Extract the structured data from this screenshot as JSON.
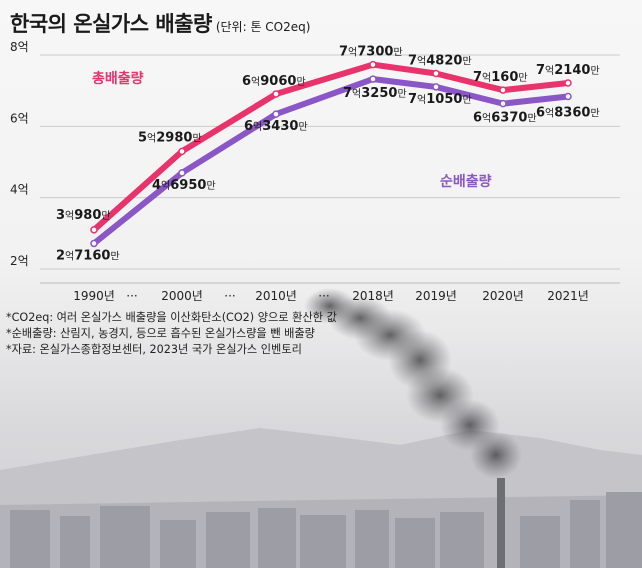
{
  "header": {
    "title": "한국의 온실가스 배출량",
    "unit": "(단위: 톤 CO2eq)"
  },
  "colors": {
    "total": "#e8336d",
    "net": "#8b56c6",
    "grid": "#cccccc"
  },
  "chart_data": {
    "type": "line",
    "categories": [
      "1990년",
      "···",
      "2000년",
      "···",
      "2010년",
      "···",
      "2018년",
      "2019년",
      "2020년",
      "2021년"
    ],
    "ylim": [
      200000000,
      800000000
    ],
    "yticks": [
      {
        "value": 200000000,
        "label": "2억"
      },
      {
        "value": 400000000,
        "label": "4억"
      },
      {
        "value": 600000000,
        "label": "6억"
      },
      {
        "value": 800000000,
        "label": "8억"
      }
    ],
    "series": [
      {
        "name": "총배출량",
        "color": "#e8336d",
        "points": [
          {
            "category": "1990년",
            "value": 309800000,
            "label": [
              "3",
              "억",
              "980",
              "만"
            ]
          },
          {
            "category": "2000년",
            "value": 529800000,
            "label": [
              "5",
              "억",
              "2980",
              "만"
            ]
          },
          {
            "category": "2010년",
            "value": 690600000,
            "label": [
              "6",
              "억",
              "9060",
              "만"
            ]
          },
          {
            "category": "2018년",
            "value": 773000000,
            "label": [
              "7",
              "억",
              "7300",
              "만"
            ]
          },
          {
            "category": "2019년",
            "value": 748200000,
            "label": [
              "7",
              "억",
              "4820",
              "만"
            ]
          },
          {
            "category": "2020년",
            "value": 701600000,
            "label": [
              "7",
              "억",
              "160",
              "만"
            ]
          },
          {
            "category": "2021년",
            "value": 721400000,
            "label": [
              "7",
              "억",
              "2140",
              "만"
            ]
          }
        ]
      },
      {
        "name": "순배출량",
        "color": "#8b56c6",
        "points": [
          {
            "category": "1990년",
            "value": 271600000,
            "label": [
              "2",
              "억",
              "7160",
              "만"
            ]
          },
          {
            "category": "2000년",
            "value": 469500000,
            "label": [
              "4",
              "억",
              "6950",
              "만"
            ]
          },
          {
            "category": "2010년",
            "value": 634300000,
            "label": [
              "6",
              "억",
              "3430",
              "만"
            ]
          },
          {
            "category": "2018년",
            "value": 732500000,
            "label": [
              "7",
              "억",
              "3250",
              "만"
            ]
          },
          {
            "category": "2019년",
            "value": 710500000,
            "label": [
              "7",
              "억",
              "1050",
              "만"
            ]
          },
          {
            "category": "2020년",
            "value": 663700000,
            "label": [
              "6",
              "억",
              "6370",
              "만"
            ]
          },
          {
            "category": "2021년",
            "value": 683600000,
            "label": [
              "6",
              "억",
              "8360",
              "만"
            ]
          }
        ]
      }
    ]
  },
  "notes": [
    "*CO2eq: 여러 온실가스 배출량을 이산화탄소(CO2) 양으로 환산한 값",
    "*순배출량: 산림지, 농경지, 등으로 흡수된 온실가스량을 뺀 배출량",
    "*자료: 온실가스종합정보센터, 2023년 국가 온실가스 인벤토리"
  ]
}
